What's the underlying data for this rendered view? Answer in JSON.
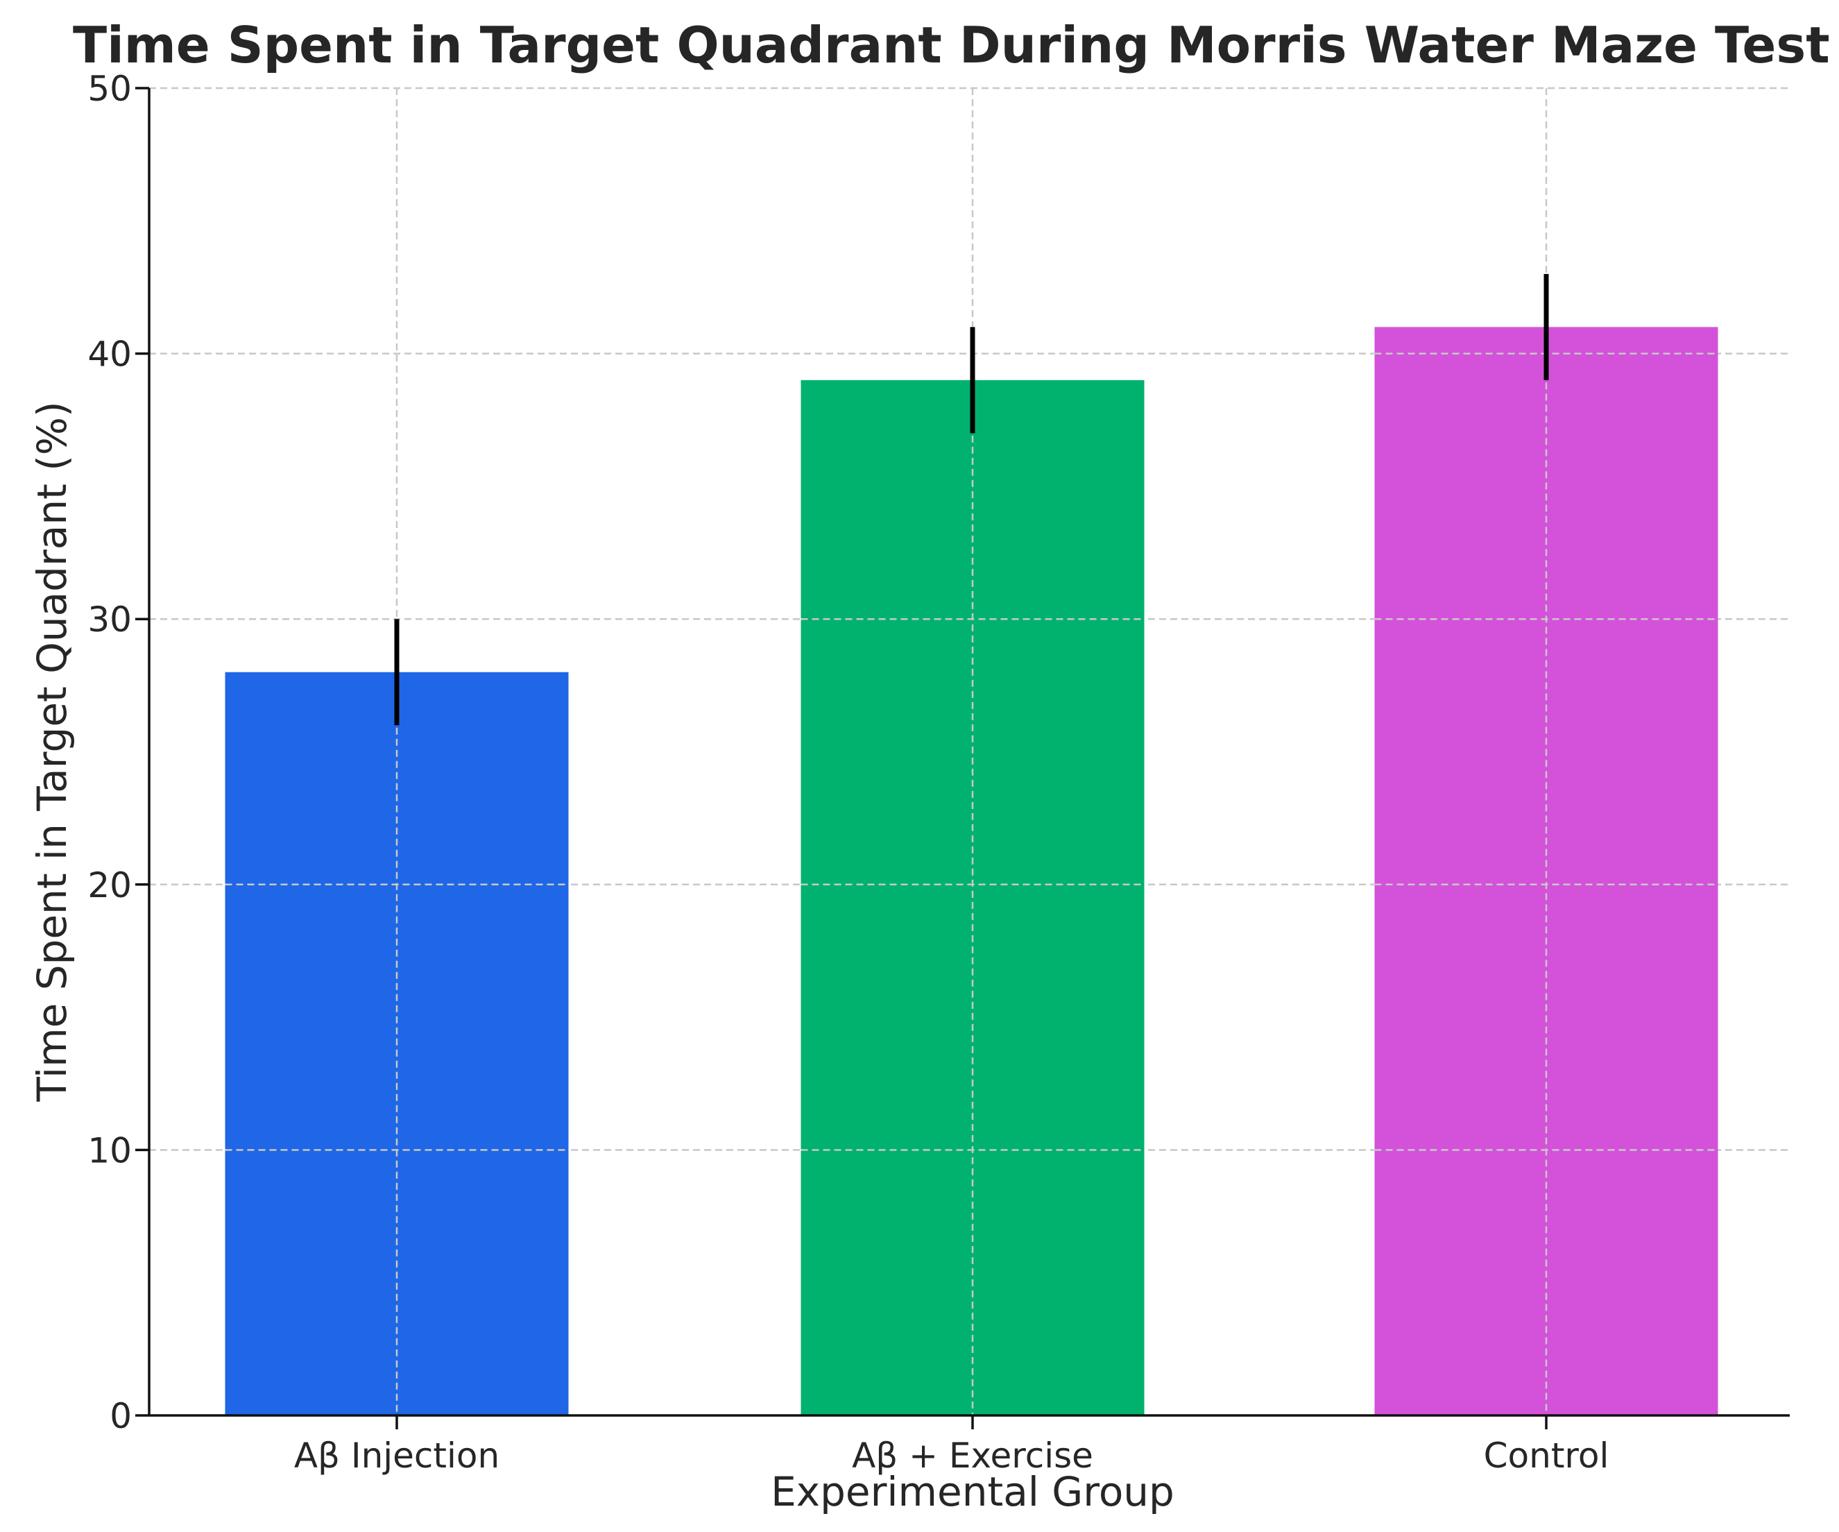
{
  "chart_data": {
    "type": "bar",
    "title": "Time Spent in Target Quadrant During Morris Water Maze Test",
    "xlabel": "Experimental Group",
    "ylabel": "Time Spent in Target Quadrant (%)",
    "categories": [
      "Aβ Injection",
      "Aβ + Exercise",
      "Control"
    ],
    "values": [
      28,
      39,
      41
    ],
    "errors": [
      2,
      2,
      2
    ],
    "colors": [
      "#1f67e6",
      "#00b26e",
      "#d352d9"
    ],
    "ylim": [
      0,
      50
    ],
    "yticks": [
      0,
      10,
      20,
      30,
      40,
      50
    ],
    "grid": true
  }
}
